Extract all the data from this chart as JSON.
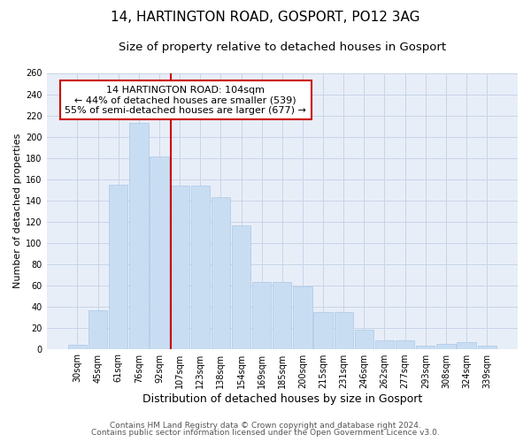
{
  "title": "14, HARTINGTON ROAD, GOSPORT, PO12 3AG",
  "subtitle": "Size of property relative to detached houses in Gosport",
  "xlabel": "Distribution of detached houses by size in Gosport",
  "ylabel": "Number of detached properties",
  "categories": [
    "30sqm",
    "45sqm",
    "61sqm",
    "76sqm",
    "92sqm",
    "107sqm",
    "123sqm",
    "138sqm",
    "154sqm",
    "169sqm",
    "185sqm",
    "200sqm",
    "215sqm",
    "231sqm",
    "246sqm",
    "262sqm",
    "277sqm",
    "293sqm",
    "308sqm",
    "324sqm",
    "339sqm"
  ],
  "values": [
    4,
    36,
    155,
    213,
    181,
    154,
    154,
    143,
    116,
    63,
    63,
    59,
    35,
    35,
    18,
    8,
    8,
    3,
    5,
    6,
    3
  ],
  "bar_color": "#c9ddf2",
  "bar_edge_color": "#aac8e8",
  "annotation_box_text": "14 HARTINGTON ROAD: 104sqm\n← 44% of detached houses are smaller (539)\n55% of semi-detached houses are larger (677) →",
  "annotation_box_color": "white",
  "annotation_box_edge_color": "#cc0000",
  "vline_color": "#cc0000",
  "ylim": [
    0,
    260
  ],
  "yticks": [
    0,
    20,
    40,
    60,
    80,
    100,
    120,
    140,
    160,
    180,
    200,
    220,
    240,
    260
  ],
  "grid_color": "#c8d4e8",
  "background_color": "#e8eef8",
  "footer_line1": "Contains HM Land Registry data © Crown copyright and database right 2024.",
  "footer_line2": "Contains public sector information licensed under the Open Government Licence v3.0.",
  "title_fontsize": 11,
  "subtitle_fontsize": 9.5,
  "xlabel_fontsize": 9,
  "ylabel_fontsize": 8,
  "tick_fontsize": 7,
  "ann_fontsize": 8,
  "footer_fontsize": 6.5
}
